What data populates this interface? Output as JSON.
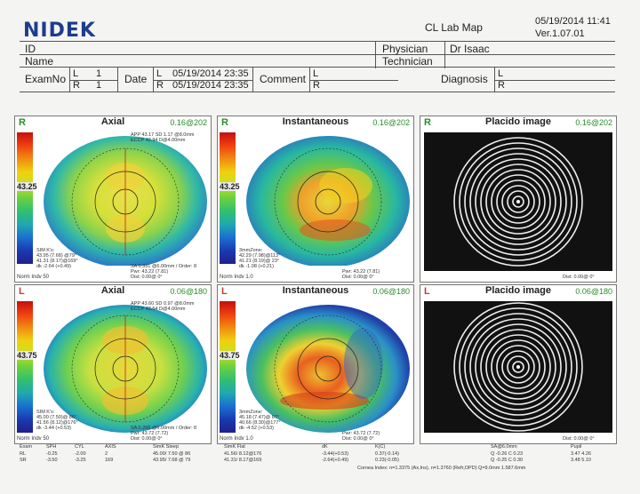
{
  "header": {
    "logo": "NIDEK",
    "map_title": "CL Lab Map",
    "datetime": "05/19/2014 11:41",
    "version": "Ver.1.07.01"
  },
  "patient": {
    "id_label": "ID",
    "name_label": "Name",
    "physician_label": "Physician",
    "physician_value": "Dr Isaac",
    "technician_label": "Technician"
  },
  "exam": {
    "examno_label": "ExamNo",
    "l_label": "L",
    "r_label": "R",
    "l_no": "1",
    "r_no": "1",
    "date_label": "Date",
    "l_date": "05/19/2014 23:35",
    "r_date": "05/19/2014 23:35",
    "comment_label": "Comment",
    "diagnosis_label": "Diagnosis"
  },
  "panels": {
    "r_axial": {
      "eye": "R",
      "title": "Axial",
      "scale": "0.16@202",
      "value": "43.25",
      "info1": "APP 43.17 SD 1.17 @8.0mm",
      "info2": "ECCP 42.94 D@4.00mm",
      "sim1": "SIM K's:",
      "sim2": "43.95 (7.68) @79°",
      "sim3": "41.31 (8.17)@169°",
      "sim4": "dk -2.64 (+0.49)",
      "foot": "Norm Indv 50",
      "sa": "SA 0.331 @6.00mm / Order: 8",
      "pwr": "Pwr: 43.22 (7.81)",
      "dist": "Dist: 0.00@ 0°"
    },
    "r_inst": {
      "eye": "R",
      "title": "Instantaneous",
      "scale": "0.16@202",
      "value": "43.25",
      "sim1": "3mmZone:",
      "sim2": "42.29 (7.98)@113°",
      "sim3": "41.21 (8.19)@ 23°",
      "sim4": "dk -1.08 (+0.21)",
      "foot": "Norm Indv 1.0",
      "pwr": "Pwr: 43.22 (7.81)",
      "dist": "Dist: 0.00@ 0°"
    },
    "r_placido": {
      "eye": "R",
      "title": "Placido image",
      "scale": "0.16@202",
      "dist": "Dist: 0.00@ 0°"
    },
    "l_axial": {
      "eye": "L",
      "title": "Axial",
      "scale": "0.06@180",
      "value": "43.75",
      "info1": "APP 43.60 SD 0.97 @8.0mm",
      "info2": "ECCP 43.54 D@4.00mm",
      "sim1": "SIM K's:",
      "sim2": "45.00 (7.50)@ 86°",
      "sim3": "41.56 (8.12)@176°",
      "sim4": "dk -3.44 (+0.53)",
      "foot": "Norm Indv 50",
      "sa": "SA 0.266 @6.00mm / Order: 8",
      "pwr": "Pwr: 43.72 (7.72)",
      "dist": "Dist: 0.00@ 0°"
    },
    "l_inst": {
      "eye": "L",
      "title": "Instantaneous",
      "scale": "0.06@180",
      "value": "43.75",
      "sim1": "3mmZone:",
      "sim2": "45.18 (7.47)@ 87°",
      "sim3": "40.66 (8.30)@177°",
      "sim4": "dk -4.52 (+0.53)",
      "foot": "Norm Indv 1.0",
      "pwr": "Pwr: 43.72 (7.72)",
      "dist": "Dist: 0.00@ 0°"
    },
    "l_placido": {
      "eye": "L",
      "title": "Placido image",
      "scale": "0.06@180",
      "dist": "Dist: 0.00@ 0°"
    }
  },
  "bottom_table": {
    "headers": [
      "Exam",
      "SPH",
      "CYL",
      "AXIS",
      "SimK Steep",
      "SimK Flat",
      "dK",
      "K(C)",
      "SA@6.0mm",
      "Pupil"
    ],
    "rows": [
      [
        "RL",
        "-0.25",
        "-2.00",
        "2",
        "45.00/ 7.50 @ 86",
        "41.56/ 8.12@176",
        "-3.44(+0.53)",
        "0.37(-0.14)",
        "Q -0.26  C 0.23",
        "3.47  4.26"
      ],
      [
        "SR",
        "-3.50",
        "-3.25",
        "169",
        "43.95/ 7.68 @ 79",
        "41.31/ 8.17@169",
        "-2.64(+0.49)",
        "0.23(-0.05)",
        "Q -0.25  C 0.30",
        "3.48  5.10"
      ]
    ],
    "footnote": "Cornea Index: n=1.3375 (Ax,Ins), n=1.3760 (Refr,OPD)  Q=9.0mm  1.587.6mm"
  }
}
